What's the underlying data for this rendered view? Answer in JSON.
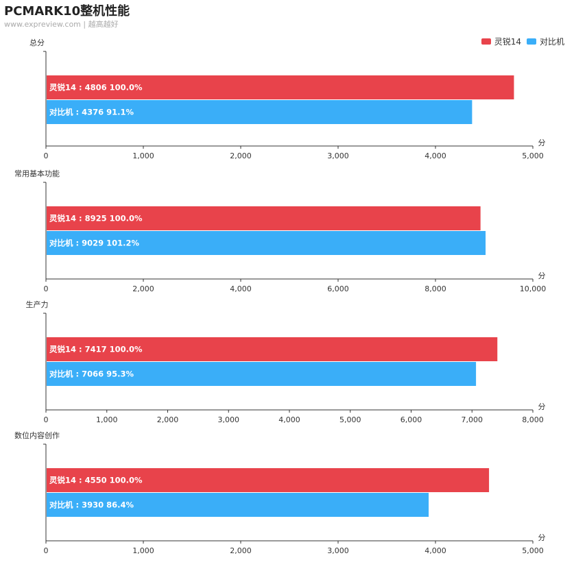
{
  "header": {
    "title": "PCMARK10整机性能",
    "subtitle": "www.expreview.com | 越高越好"
  },
  "legend": [
    {
      "name": "灵锐14",
      "color": "#e8434b"
    },
    {
      "name": "对比机",
      "color": "#3aaef8"
    }
  ],
  "chart_data": [
    {
      "type": "bar",
      "orientation": "horizontal",
      "title": "总分",
      "unit": "分",
      "xlim": [
        0,
        5000
      ],
      "ticks": [
        0,
        1000,
        2000,
        3000,
        4000,
        5000
      ],
      "tick_labels": [
        "0",
        "1,000",
        "2,000",
        "3,000",
        "4,000",
        "5,000"
      ],
      "series": [
        {
          "name": "灵锐14",
          "value": 4806,
          "percent": "100.0%",
          "label": "灵锐14 : 4806  100.0%"
        },
        {
          "name": "对比机",
          "value": 4376,
          "percent": "91.1%",
          "label": "对比机 : 4376  91.1%"
        }
      ]
    },
    {
      "type": "bar",
      "orientation": "horizontal",
      "title": "常用基本功能",
      "unit": "分",
      "xlim": [
        0,
        10000
      ],
      "ticks": [
        0,
        2000,
        4000,
        6000,
        8000,
        10000
      ],
      "tick_labels": [
        "0",
        "2,000",
        "4,000",
        "6,000",
        "8,000",
        "10,000"
      ],
      "series": [
        {
          "name": "灵锐14",
          "value": 8925,
          "percent": "100.0%",
          "label": "灵锐14 : 8925  100.0%"
        },
        {
          "name": "对比机",
          "value": 9029,
          "percent": "101.2%",
          "label": "对比机 : 9029  101.2%"
        }
      ]
    },
    {
      "type": "bar",
      "orientation": "horizontal",
      "title": "生产力",
      "unit": "分",
      "xlim": [
        0,
        8000
      ],
      "ticks": [
        0,
        1000,
        2000,
        3000,
        4000,
        5000,
        6000,
        7000,
        8000
      ],
      "tick_labels": [
        "0",
        "1,000",
        "2,000",
        "3,000",
        "4,000",
        "5,000",
        "6,000",
        "7,000",
        "8,000"
      ],
      "series": [
        {
          "name": "灵锐14",
          "value": 7417,
          "percent": "100.0%",
          "label": "灵锐14 : 7417  100.0%"
        },
        {
          "name": "对比机",
          "value": 7066,
          "percent": "95.3%",
          "label": "对比机 : 7066  95.3%"
        }
      ]
    },
    {
      "type": "bar",
      "orientation": "horizontal",
      "title": "数位内容创作",
      "unit": "分",
      "xlim": [
        0,
        5000
      ],
      "ticks": [
        0,
        1000,
        2000,
        3000,
        4000,
        5000
      ],
      "tick_labels": [
        "0",
        "1,000",
        "2,000",
        "3,000",
        "4,000",
        "5,000"
      ],
      "series": [
        {
          "name": "灵锐14",
          "value": 4550,
          "percent": "100.0%",
          "label": "灵锐14 : 4550  100.0%"
        },
        {
          "name": "对比机",
          "value": 3930,
          "percent": "86.4%",
          "label": "对比机 : 3930  86.4%"
        }
      ]
    }
  ]
}
